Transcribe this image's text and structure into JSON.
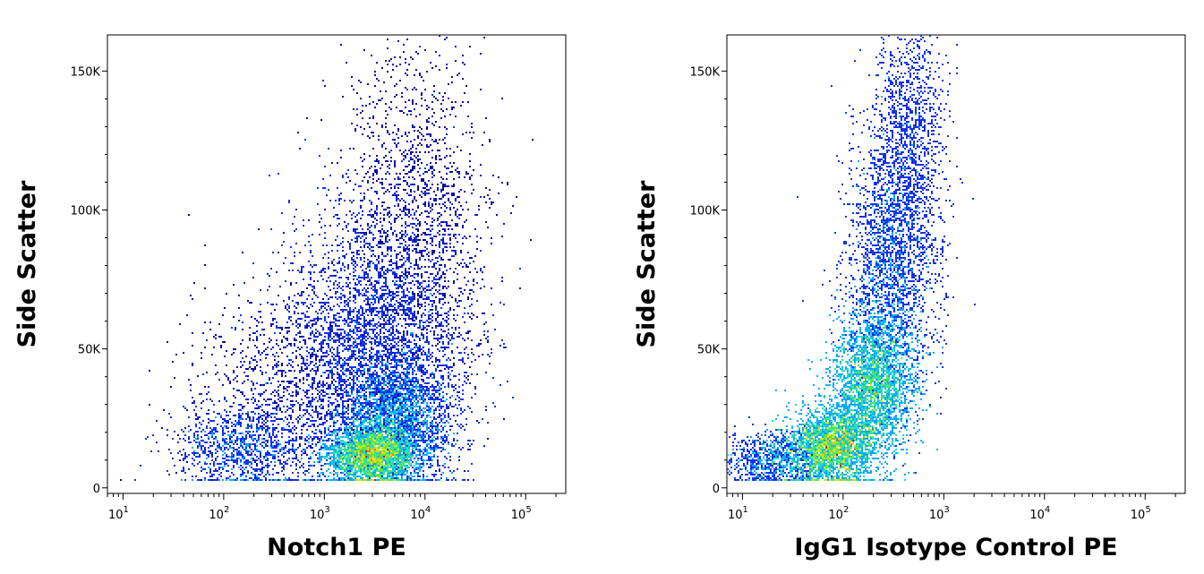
{
  "chart_data": [
    {
      "type": "scatter",
      "subtype": "density-dot-plot",
      "xlabel": "Notch1 PE",
      "ylabel": "Side Scatter",
      "x_scale": "log",
      "xlim": [
        7,
        250000
      ],
      "ylim": [
        -2000,
        163000
      ],
      "x_ticks": [
        {
          "value": 10,
          "base": "10",
          "exp": "1"
        },
        {
          "value": 100,
          "base": "10",
          "exp": "2"
        },
        {
          "value": 1000,
          "base": "10",
          "exp": "3"
        },
        {
          "value": 10000,
          "base": "10",
          "exp": "4"
        },
        {
          "value": 100000,
          "base": "10",
          "exp": "5"
        }
      ],
      "y_ticks": [
        {
          "value": 0,
          "label": "0"
        },
        {
          "value": 50000,
          "label": "50K"
        },
        {
          "value": 100000,
          "label": "100K"
        },
        {
          "value": 150000,
          "label": "150K"
        }
      ],
      "clusters": [
        {
          "x": 3000,
          "y": 12000,
          "sx": 0.22,
          "sy": 5000,
          "n": 2600,
          "w": 3.0
        },
        {
          "x": 5000,
          "y": 25000,
          "sx": 0.28,
          "sy": 10000,
          "n": 2200,
          "w": 1.8
        },
        {
          "x": 3000,
          "y": 50000,
          "sx": 0.45,
          "sy": 25000,
          "n": 3000,
          "w": 0.9
        },
        {
          "x": 8000,
          "y": 90000,
          "sx": 0.35,
          "sy": 35000,
          "n": 2000,
          "w": 0.6
        },
        {
          "x": 150,
          "y": 15000,
          "sx": 0.35,
          "sy": 8000,
          "n": 1000,
          "w": 1.2
        },
        {
          "x": 700,
          "y": 35000,
          "sx": 0.55,
          "sy": 20000,
          "n": 1300,
          "w": 0.55
        }
      ],
      "grid": false,
      "legend": "none"
    },
    {
      "type": "scatter",
      "subtype": "density-dot-plot",
      "xlabel": "IgG1 Isotype Control PE",
      "ylabel": "Side Scatter",
      "x_scale": "log",
      "xlim": [
        7,
        250000
      ],
      "ylim": [
        -2000,
        163000
      ],
      "x_ticks": [
        {
          "value": 10,
          "base": "10",
          "exp": "1"
        },
        {
          "value": 100,
          "base": "10",
          "exp": "2"
        },
        {
          "value": 1000,
          "base": "10",
          "exp": "3"
        },
        {
          "value": 10000,
          "base": "10",
          "exp": "4"
        },
        {
          "value": 100000,
          "base": "10",
          "exp": "5"
        }
      ],
      "y_ticks": [
        {
          "value": 0,
          "label": "0"
        },
        {
          "value": 50000,
          "label": "50K"
        },
        {
          "value": 100000,
          "label": "100K"
        },
        {
          "value": 150000,
          "label": "150K"
        }
      ],
      "clusters": [
        {
          "x": 80,
          "y": 15000,
          "sx": 0.22,
          "sy": 7000,
          "n": 2600,
          "w": 2.2
        },
        {
          "x": 200,
          "y": 38000,
          "sx": 0.2,
          "sy": 12000,
          "n": 2400,
          "w": 1.8
        },
        {
          "x": 300,
          "y": 80000,
          "sx": 0.22,
          "sy": 25000,
          "n": 2200,
          "w": 0.9
        },
        {
          "x": 450,
          "y": 125000,
          "sx": 0.18,
          "sy": 25000,
          "n": 1300,
          "w": 0.5
        },
        {
          "x": 20,
          "y": 10000,
          "sx": 0.25,
          "sy": 5000,
          "n": 900,
          "w": 1.0
        }
      ],
      "grid": false,
      "legend": "none"
    }
  ],
  "colors": {
    "density_scale": [
      "#0a0aa8",
      "#1432e6",
      "#10a8ff",
      "#20e0c8",
      "#5ee63c",
      "#c8f01e",
      "#ffcc00",
      "#ff7a00",
      "#e11414"
    ],
    "axis": "#000000"
  }
}
